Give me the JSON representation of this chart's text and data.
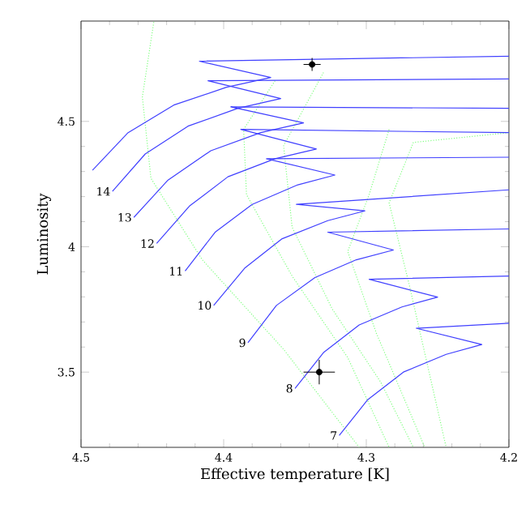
{
  "chart_data": {
    "type": "line",
    "xlabel": "Effective temperature [K]",
    "ylabel": "Luminosity",
    "xlim": [
      4.5,
      4.2
    ],
    "ylim": [
      3.2,
      4.9
    ],
    "xticks": [
      4.5,
      4.4,
      4.3,
      4.2
    ],
    "yticks": [
      3.5,
      4,
      4.5
    ],
    "line_style": "solid",
    "marker": "none",
    "grid": false,
    "series": [
      {
        "color": "#80ff80",
        "line_style": "dotted",
        "x": [
          4.449,
          4.457,
          4.451,
          4.415,
          4.358,
          4.305
        ],
        "values": [
          4.896,
          4.597,
          4.273,
          3.948,
          3.591,
          3.2
        ]
      },
      {
        "color": "#80ff80",
        "line_style": "dotted",
        "x": [
          4.364,
          4.386,
          4.384,
          4.352,
          4.313,
          4.284
        ],
        "values": [
          4.662,
          4.468,
          4.208,
          3.883,
          3.558,
          3.2
        ]
      },
      {
        "color": "#80ff80",
        "line_style": "dotted",
        "x": [
          4.33,
          4.358,
          4.352,
          4.324,
          4.29,
          4.267
        ],
        "values": [
          4.695,
          4.403,
          4.078,
          3.753,
          3.461,
          3.2
        ]
      },
      {
        "color": "#80ff80",
        "line_style": "dotted",
        "x": [
          4.284,
          4.298,
          4.313,
          4.293,
          4.259
        ],
        "values": [
          4.468,
          4.208,
          3.981,
          3.656,
          3.2
        ]
      },
      {
        "color": "#80ff80",
        "line_style": "dotted",
        "x": [
          4.2,
          4.267,
          4.284,
          4.27,
          4.244
        ],
        "values": [
          4.455,
          4.416,
          4.175,
          3.851,
          3.2
        ]
      },
      {
        "color": "#4040ff",
        "x": [
          4.492,
          4.467,
          4.435,
          4.398,
          4.367,
          4.417,
          4.2
        ],
        "values": [
          4.305,
          4.455,
          4.565,
          4.636,
          4.675,
          4.74,
          4.76
        ]
      },
      {
        "color": "#4040ff",
        "x": [
          4.478,
          4.455,
          4.425,
          4.39,
          4.36,
          4.411,
          4.2
        ],
        "values": [
          4.221,
          4.37,
          4.481,
          4.552,
          4.591,
          4.662,
          4.669
        ]
      },
      {
        "color": "#4040ff",
        "x": [
          4.463,
          4.439,
          4.409,
          4.374,
          4.344,
          4.395,
          4.2
        ],
        "values": [
          4.117,
          4.266,
          4.383,
          4.455,
          4.494,
          4.558,
          4.552
        ]
      },
      {
        "color": "#4040ff",
        "x": [
          4.447,
          4.424,
          4.397,
          4.364,
          4.335,
          4.388,
          4.2
        ],
        "values": [
          4.013,
          4.162,
          4.279,
          4.351,
          4.39,
          4.468,
          4.455
        ]
      },
      {
        "color": "#4040ff",
        "x": [
          4.427,
          4.406,
          4.38,
          4.348,
          4.322,
          4.37,
          4.2
        ],
        "values": [
          3.903,
          4.058,
          4.169,
          4.247,
          4.286,
          4.351,
          4.357
        ]
      },
      {
        "color": "#4040ff",
        "x": [
          4.407,
          4.385,
          4.359,
          4.327,
          4.301,
          4.349,
          4.2
        ],
        "values": [
          3.766,
          3.916,
          4.032,
          4.104,
          4.143,
          4.169,
          4.227
        ]
      },
      {
        "color": "#4040ff",
        "x": [
          4.383,
          4.363,
          4.336,
          4.307,
          4.281,
          4.327,
          4.2
        ],
        "values": [
          3.617,
          3.766,
          3.877,
          3.948,
          3.987,
          4.058,
          4.071
        ]
      },
      {
        "color": "#4040ff",
        "x": [
          4.35,
          4.33,
          4.305,
          4.275,
          4.25,
          4.298,
          4.2
        ],
        "values": [
          3.435,
          3.578,
          3.688,
          3.76,
          3.799,
          3.87,
          3.883
        ]
      },
      {
        "color": "#4040ff",
        "x": [
          4.319,
          4.299,
          4.274,
          4.244,
          4.219,
          4.265,
          4.2
        ],
        "values": [
          3.247,
          3.39,
          3.5,
          3.571,
          3.61,
          3.675,
          3.695
        ]
      },
      {
        "type": "scatter",
        "marker": "circle",
        "color": "#000000",
        "x": [
          4.338,
          4.333
        ],
        "values": [
          4.727,
          3.5
        ],
        "errors": [
          0.026,
          0.049
        ],
        "xerrors": [
          0.006,
          0.011
        ]
      }
    ],
    "annotations": [
      {
        "text": "14",
        "x": 4.478,
        "y": 4.221
      },
      {
        "text": "13",
        "x": 4.463,
        "y": 4.117
      },
      {
        "text": "12",
        "x": 4.447,
        "y": 4.013
      },
      {
        "text": "11",
        "x": 4.427,
        "y": 3.903
      },
      {
        "text": "10",
        "x": 4.407,
        "y": 3.766
      },
      {
        "text": "9",
        "x": 4.383,
        "y": 3.617
      },
      {
        "text": "8",
        "x": 4.35,
        "y": 3.435
      },
      {
        "text": "7",
        "x": 4.319,
        "y": 3.247
      }
    ]
  }
}
